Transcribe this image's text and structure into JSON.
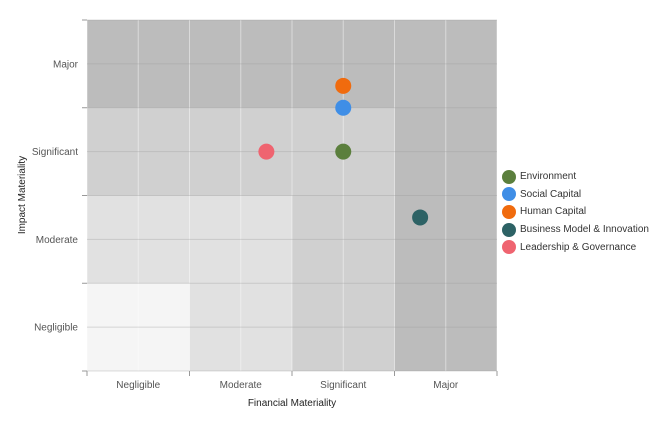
{
  "chart_data": {
    "type": "scatter",
    "xlabel": "Financial Materiality",
    "ylabel": "Impact Materiality",
    "x_categories": [
      "Negligible",
      "Moderate",
      "Significant",
      "Major"
    ],
    "y_categories": [
      "Negligible",
      "Moderate",
      "Significant",
      "Major"
    ],
    "xlim": [
      0,
      4
    ],
    "ylim": [
      0,
      4
    ],
    "grid": true,
    "legend_position": "right",
    "zones": [
      {
        "level": 1,
        "color": "#f5f5f5"
      },
      {
        "level": 2,
        "color": "#e1e1e1"
      },
      {
        "level": 3,
        "color": "#d0d0d0"
      },
      {
        "level": 4,
        "color": "#bcbcbc"
      }
    ],
    "series": [
      {
        "name": "Environment",
        "color": "#5b7f3d",
        "x": 2.5,
        "y": 2.5
      },
      {
        "name": "Social Capital",
        "color": "#3f8ee6",
        "x": 2.5,
        "y": 3.0
      },
      {
        "name": "Human Capital",
        "color": "#f06b0e",
        "x": 2.5,
        "y": 3.25
      },
      {
        "name": "Business Model & Innovation",
        "color": "#2d6265",
        "x": 3.25,
        "y": 1.75
      },
      {
        "name": "Leadership & Governance",
        "color": "#ef6470",
        "x": 1.75,
        "y": 2.5
      }
    ]
  }
}
